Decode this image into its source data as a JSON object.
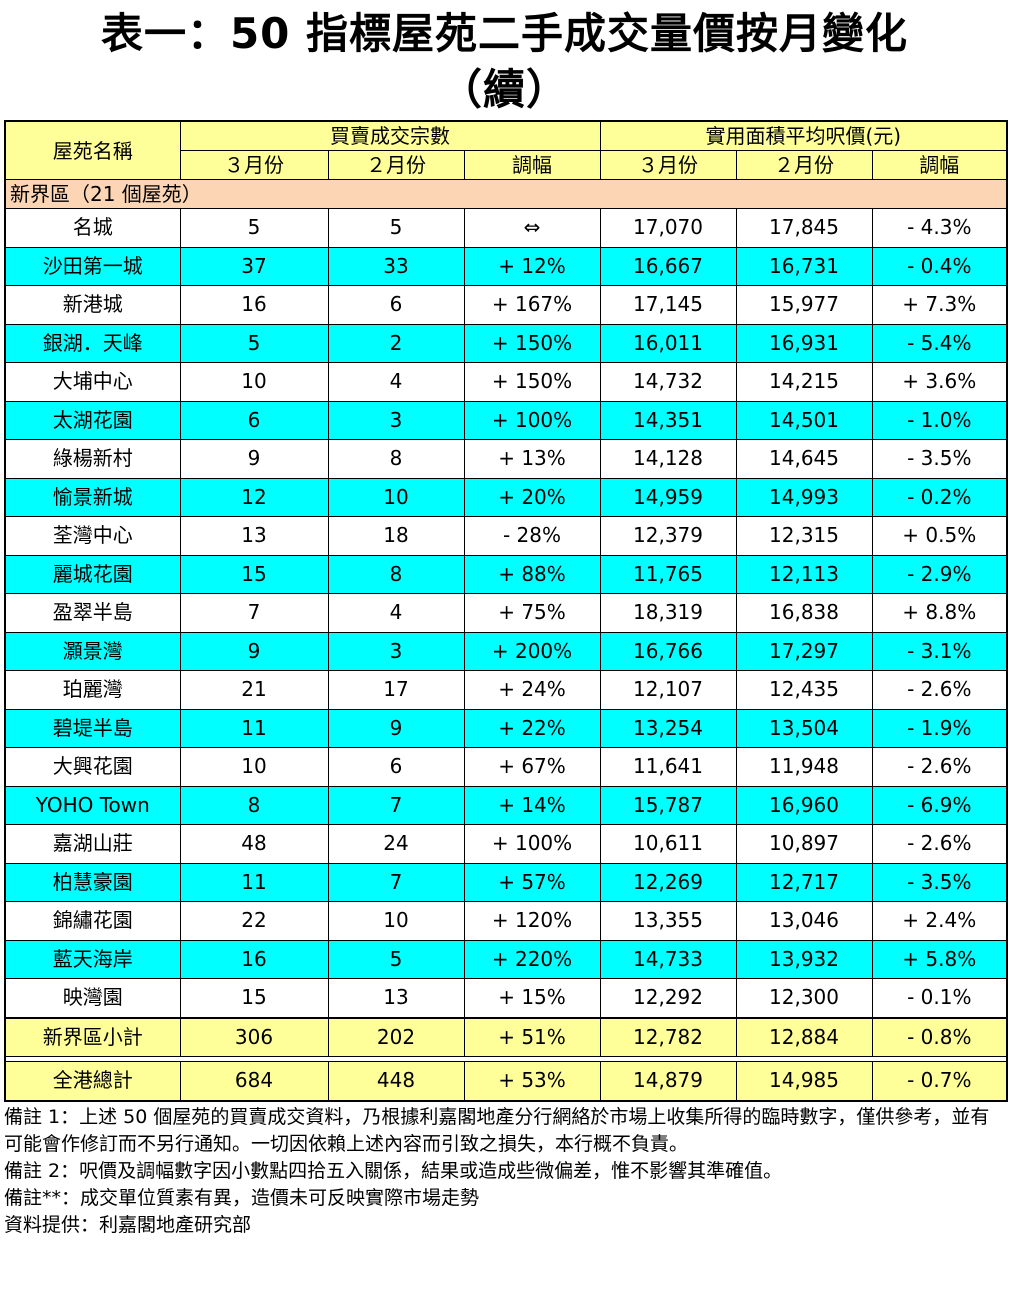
{
  "title_line1": "表一：50 指標屋苑二手成交量價按月變化",
  "title_line2": "（續）",
  "headers": {
    "estate": "屋苑名稱",
    "group_volume": "買賣成交宗數",
    "group_price": "實用面積平均呎價(元)",
    "march": "３月份",
    "feb": "２月份",
    "change": "調幅"
  },
  "region_label": "新界區（21 個屋苑）",
  "rows": [
    {
      "name": "名城",
      "v_mar": "5",
      "v_feb": "5",
      "v_chg": "⇔",
      "p_mar": "17,070",
      "p_feb": "17,845",
      "p_chg": "- 4.3%"
    },
    {
      "name": "沙田第一城",
      "v_mar": "37",
      "v_feb": "33",
      "v_chg": "+ 12%",
      "p_mar": "16,667",
      "p_feb": "16,731",
      "p_chg": "- 0.4%"
    },
    {
      "name": "新港城",
      "v_mar": "16",
      "v_feb": "6",
      "v_chg": "+ 167%",
      "p_mar": "17,145",
      "p_feb": "15,977",
      "p_chg": "+ 7.3%"
    },
    {
      "name": "銀湖．天峰",
      "v_mar": "5",
      "v_feb": "2",
      "v_chg": "+ 150%",
      "p_mar": "16,011",
      "p_feb": "16,931",
      "p_chg": "- 5.4%"
    },
    {
      "name": "大埔中心",
      "v_mar": "10",
      "v_feb": "4",
      "v_chg": "+ 150%",
      "p_mar": "14,732",
      "p_feb": "14,215",
      "p_chg": "+ 3.6%"
    },
    {
      "name": "太湖花園",
      "v_mar": "6",
      "v_feb": "3",
      "v_chg": "+ 100%",
      "p_mar": "14,351",
      "p_feb": "14,501",
      "p_chg": "- 1.0%"
    },
    {
      "name": "綠楊新村",
      "v_mar": "9",
      "v_feb": "8",
      "v_chg": "+ 13%",
      "p_mar": "14,128",
      "p_feb": "14,645",
      "p_chg": "- 3.5%"
    },
    {
      "name": "愉景新城",
      "v_mar": "12",
      "v_feb": "10",
      "v_chg": "+ 20%",
      "p_mar": "14,959",
      "p_feb": "14,993",
      "p_chg": "- 0.2%"
    },
    {
      "name": "荃灣中心",
      "v_mar": "13",
      "v_feb": "18",
      "v_chg": "- 28%",
      "p_mar": "12,379",
      "p_feb": "12,315",
      "p_chg": "+ 0.5%"
    },
    {
      "name": "麗城花園",
      "v_mar": "15",
      "v_feb": "8",
      "v_chg": "+ 88%",
      "p_mar": "11,765",
      "p_feb": "12,113",
      "p_chg": "- 2.9%"
    },
    {
      "name": "盈翠半島",
      "v_mar": "7",
      "v_feb": "4",
      "v_chg": "+ 75%",
      "p_mar": "18,319",
      "p_feb": "16,838",
      "p_chg": "+ 8.8%"
    },
    {
      "name": "灝景灣",
      "v_mar": "9",
      "v_feb": "3",
      "v_chg": "+ 200%",
      "p_mar": "16,766",
      "p_feb": "17,297",
      "p_chg": "- 3.1%"
    },
    {
      "name": "珀麗灣",
      "v_mar": "21",
      "v_feb": "17",
      "v_chg": "+ 24%",
      "p_mar": "12,107",
      "p_feb": "12,435",
      "p_chg": "- 2.6%"
    },
    {
      "name": "碧堤半島",
      "v_mar": "11",
      "v_feb": "9",
      "v_chg": "+ 22%",
      "p_mar": "13,254",
      "p_feb": "13,504",
      "p_chg": "- 1.9%"
    },
    {
      "name": "大興花園",
      "v_mar": "10",
      "v_feb": "6",
      "v_chg": "+ 67%",
      "p_mar": "11,641",
      "p_feb": "11,948",
      "p_chg": "- 2.6%"
    },
    {
      "name": "YOHO Town",
      "v_mar": "8",
      "v_feb": "7",
      "v_chg": "+ 14%",
      "p_mar": "15,787",
      "p_feb": "16,960",
      "p_chg": "- 6.9%"
    },
    {
      "name": "嘉湖山莊",
      "v_mar": "48",
      "v_feb": "24",
      "v_chg": "+ 100%",
      "p_mar": "10,611",
      "p_feb": "10,897",
      "p_chg": "- 2.6%"
    },
    {
      "name": "柏慧豪園",
      "v_mar": "11",
      "v_feb": "7",
      "v_chg": "+ 57%",
      "p_mar": "12,269",
      "p_feb": "12,717",
      "p_chg": "- 3.5%"
    },
    {
      "name": "錦繡花園",
      "v_mar": "22",
      "v_feb": "10",
      "v_chg": "+ 120%",
      "p_mar": "13,355",
      "p_feb": "13,046",
      "p_chg": "+ 2.4%"
    },
    {
      "name": "藍天海岸",
      "v_mar": "16",
      "v_feb": "5",
      "v_chg": "+ 220%",
      "p_mar": "14,733",
      "p_feb": "13,932",
      "p_chg": "+ 5.8%"
    },
    {
      "name": "映灣園",
      "v_mar": "15",
      "v_feb": "13",
      "v_chg": "+ 15%",
      "p_mar": "12,292",
      "p_feb": "12,300",
      "p_chg": "- 0.1%"
    }
  ],
  "subtotal": {
    "name": "新界區小計",
    "v_mar": "306",
    "v_feb": "202",
    "v_chg": "+ 51%",
    "p_mar": "12,782",
    "p_feb": "12,884",
    "p_chg": "- 0.8%"
  },
  "total": {
    "name": "全港總計",
    "v_mar": "684",
    "v_feb": "448",
    "v_chg": "+ 53%",
    "p_mar": "14,879",
    "p_feb": "14,985",
    "p_chg": "- 0.7%"
  },
  "notes": [
    "備註 1：上述 50 個屋苑的買賣成交資料，乃根據利嘉閣地產分行網絡於市場上收集所得的臨時數字，僅供參考，並有可能會作修訂而不另行通知。一切因依賴上述內容而引致之損失，本行概不負責。",
    "備註 2：呎價及調幅數字因小數點四拾五入關係，結果或造成些微偏差，惟不影響其準確值。",
    "備註**：成交單位質素有異，造價未可反映實際市場走勢",
    "資料提供：利嘉閣地產研究部"
  ],
  "colors": {
    "header_bg": "#ffff99",
    "region_bg": "#fcd5b4",
    "alt_row_bg": "#00ffff"
  }
}
